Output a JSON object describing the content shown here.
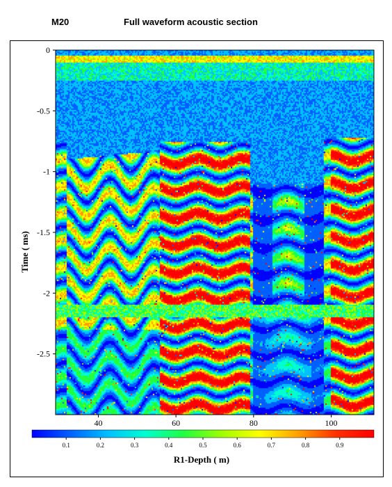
{
  "header": {
    "id": "M20",
    "title": "Full waveform acoustic section"
  },
  "chart_data": {
    "type": "heatmap",
    "title": "Full waveform acoustic section",
    "xlabel": "R1-Depth ( m)",
    "ylabel": "Time ( ms)",
    "xlim": [
      29,
      111
    ],
    "ylim": [
      -3.0,
      0
    ],
    "x_ticks": [
      40,
      60,
      80,
      100
    ],
    "y_ticks": [
      0,
      -0.5,
      -1,
      -1.5,
      -2,
      -2.5
    ],
    "colorbar": {
      "ticks": [
        0.1,
        0.2,
        0.3,
        0.4,
        0.5,
        0.6,
        0.7,
        0.8,
        0.9
      ],
      "range": [
        0,
        1
      ],
      "colors": [
        "#0000ff",
        "#0060ff",
        "#00c0ff",
        "#00ffd0",
        "#20ff40",
        "#a0ff00",
        "#ffff00",
        "#ffa000",
        "#ff3000",
        "#ff0000"
      ]
    },
    "grid": false,
    "legend": "colorbar-bottom"
  }
}
